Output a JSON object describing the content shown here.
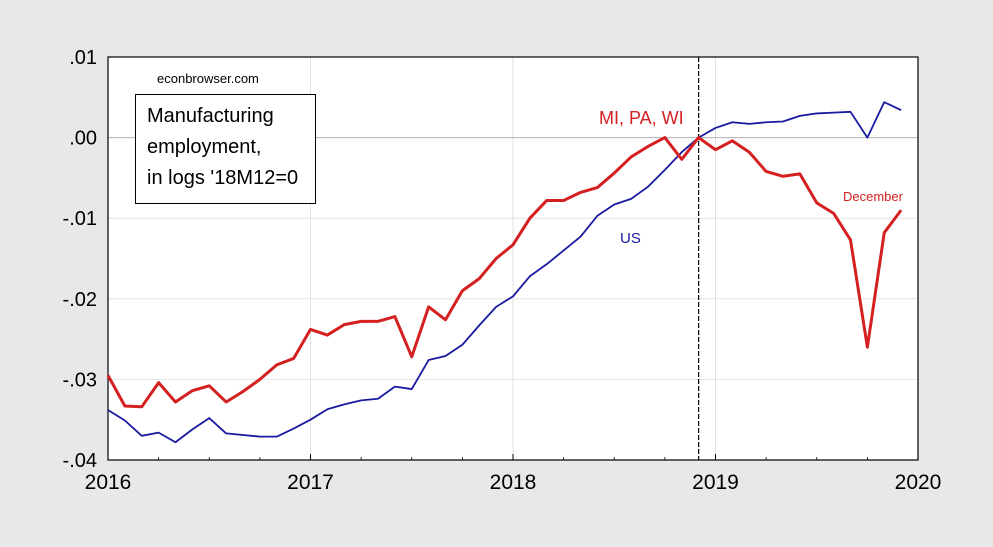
{
  "watermark": "econbrowser.com",
  "legend_lines": [
    "Manufacturing",
    "employment,",
    "in logs '18M12=0"
  ],
  "chart_data": {
    "type": "line",
    "x_ticks": [
      "2016",
      "2017",
      "2018",
      "2019",
      "2020"
    ],
    "y_ticks": [
      ".01",
      ".00",
      "-.01",
      "-.02",
      "-.03",
      "-.04"
    ],
    "xlim": [
      "2016-01",
      "2020-01"
    ],
    "ylim": [
      -0.04,
      0.01
    ],
    "vertical_line_at": "2018-12",
    "colors": {
      "mi_pa_wi": "#d42020",
      "us": "#1a1aa0",
      "vline": "#000000",
      "zero_line": "#b0b0b0"
    },
    "annotations": {
      "mi_pa_wi": "MI, PA, WI",
      "us": "US",
      "december": "December"
    },
    "x": [
      "2016-01",
      "2016-02",
      "2016-03",
      "2016-04",
      "2016-05",
      "2016-06",
      "2016-07",
      "2016-08",
      "2016-09",
      "2016-10",
      "2016-11",
      "2016-12",
      "2017-01",
      "2017-02",
      "2017-03",
      "2017-04",
      "2017-05",
      "2017-06",
      "2017-07",
      "2017-08",
      "2017-09",
      "2017-10",
      "2017-11",
      "2017-12",
      "2018-01",
      "2018-02",
      "2018-03",
      "2018-04",
      "2018-05",
      "2018-06",
      "2018-07",
      "2018-08",
      "2018-09",
      "2018-10",
      "2018-11",
      "2018-12",
      "2019-01",
      "2019-02",
      "2019-03",
      "2019-04",
      "2019-05",
      "2019-06",
      "2019-07",
      "2019-08",
      "2019-09",
      "2019-10",
      "2019-11",
      "2019-12"
    ],
    "series": [
      {
        "name": "MI, PA, WI",
        "values": [
          -0.0295,
          -0.0333,
          -0.0334,
          -0.0304,
          -0.0328,
          -0.0314,
          -0.0308,
          -0.0328,
          -0.0315,
          -0.03,
          -0.0282,
          -0.0274,
          -0.0238,
          -0.0245,
          -0.0232,
          -0.0228,
          -0.0228,
          -0.0222,
          -0.0272,
          -0.021,
          -0.0226,
          -0.019,
          -0.0175,
          -0.015,
          -0.0133,
          -0.01,
          -0.0078,
          -0.0078,
          -0.0068,
          -0.0062,
          -0.0044,
          -0.0024,
          -0.0011,
          0.0,
          -0.0027,
          0.0,
          -0.0015,
          -0.0004,
          -0.0018,
          -0.0042,
          -0.0048,
          -0.0045,
          -0.0081,
          -0.0094,
          -0.0127,
          -0.026,
          -0.0118,
          -0.009
        ]
      },
      {
        "name": "US",
        "values": [
          -0.0338,
          -0.0351,
          -0.037,
          -0.0366,
          -0.0378,
          -0.0362,
          -0.0348,
          -0.0367,
          -0.0369,
          -0.0371,
          -0.0371,
          -0.0361,
          -0.035,
          -0.0337,
          -0.0331,
          -0.0326,
          -0.0324,
          -0.0309,
          -0.0312,
          -0.0276,
          -0.0271,
          -0.0257,
          -0.0233,
          -0.021,
          -0.0197,
          -0.0172,
          -0.0157,
          -0.014,
          -0.0123,
          -0.0097,
          -0.0083,
          -0.0076,
          -0.0061,
          -0.004,
          -0.0018,
          0.0,
          0.0012,
          0.0019,
          0.0017,
          0.0019,
          0.002,
          0.0027,
          0.003,
          0.0031,
          0.0032,
          0.0,
          0.0044,
          0.0034
        ]
      }
    ]
  }
}
